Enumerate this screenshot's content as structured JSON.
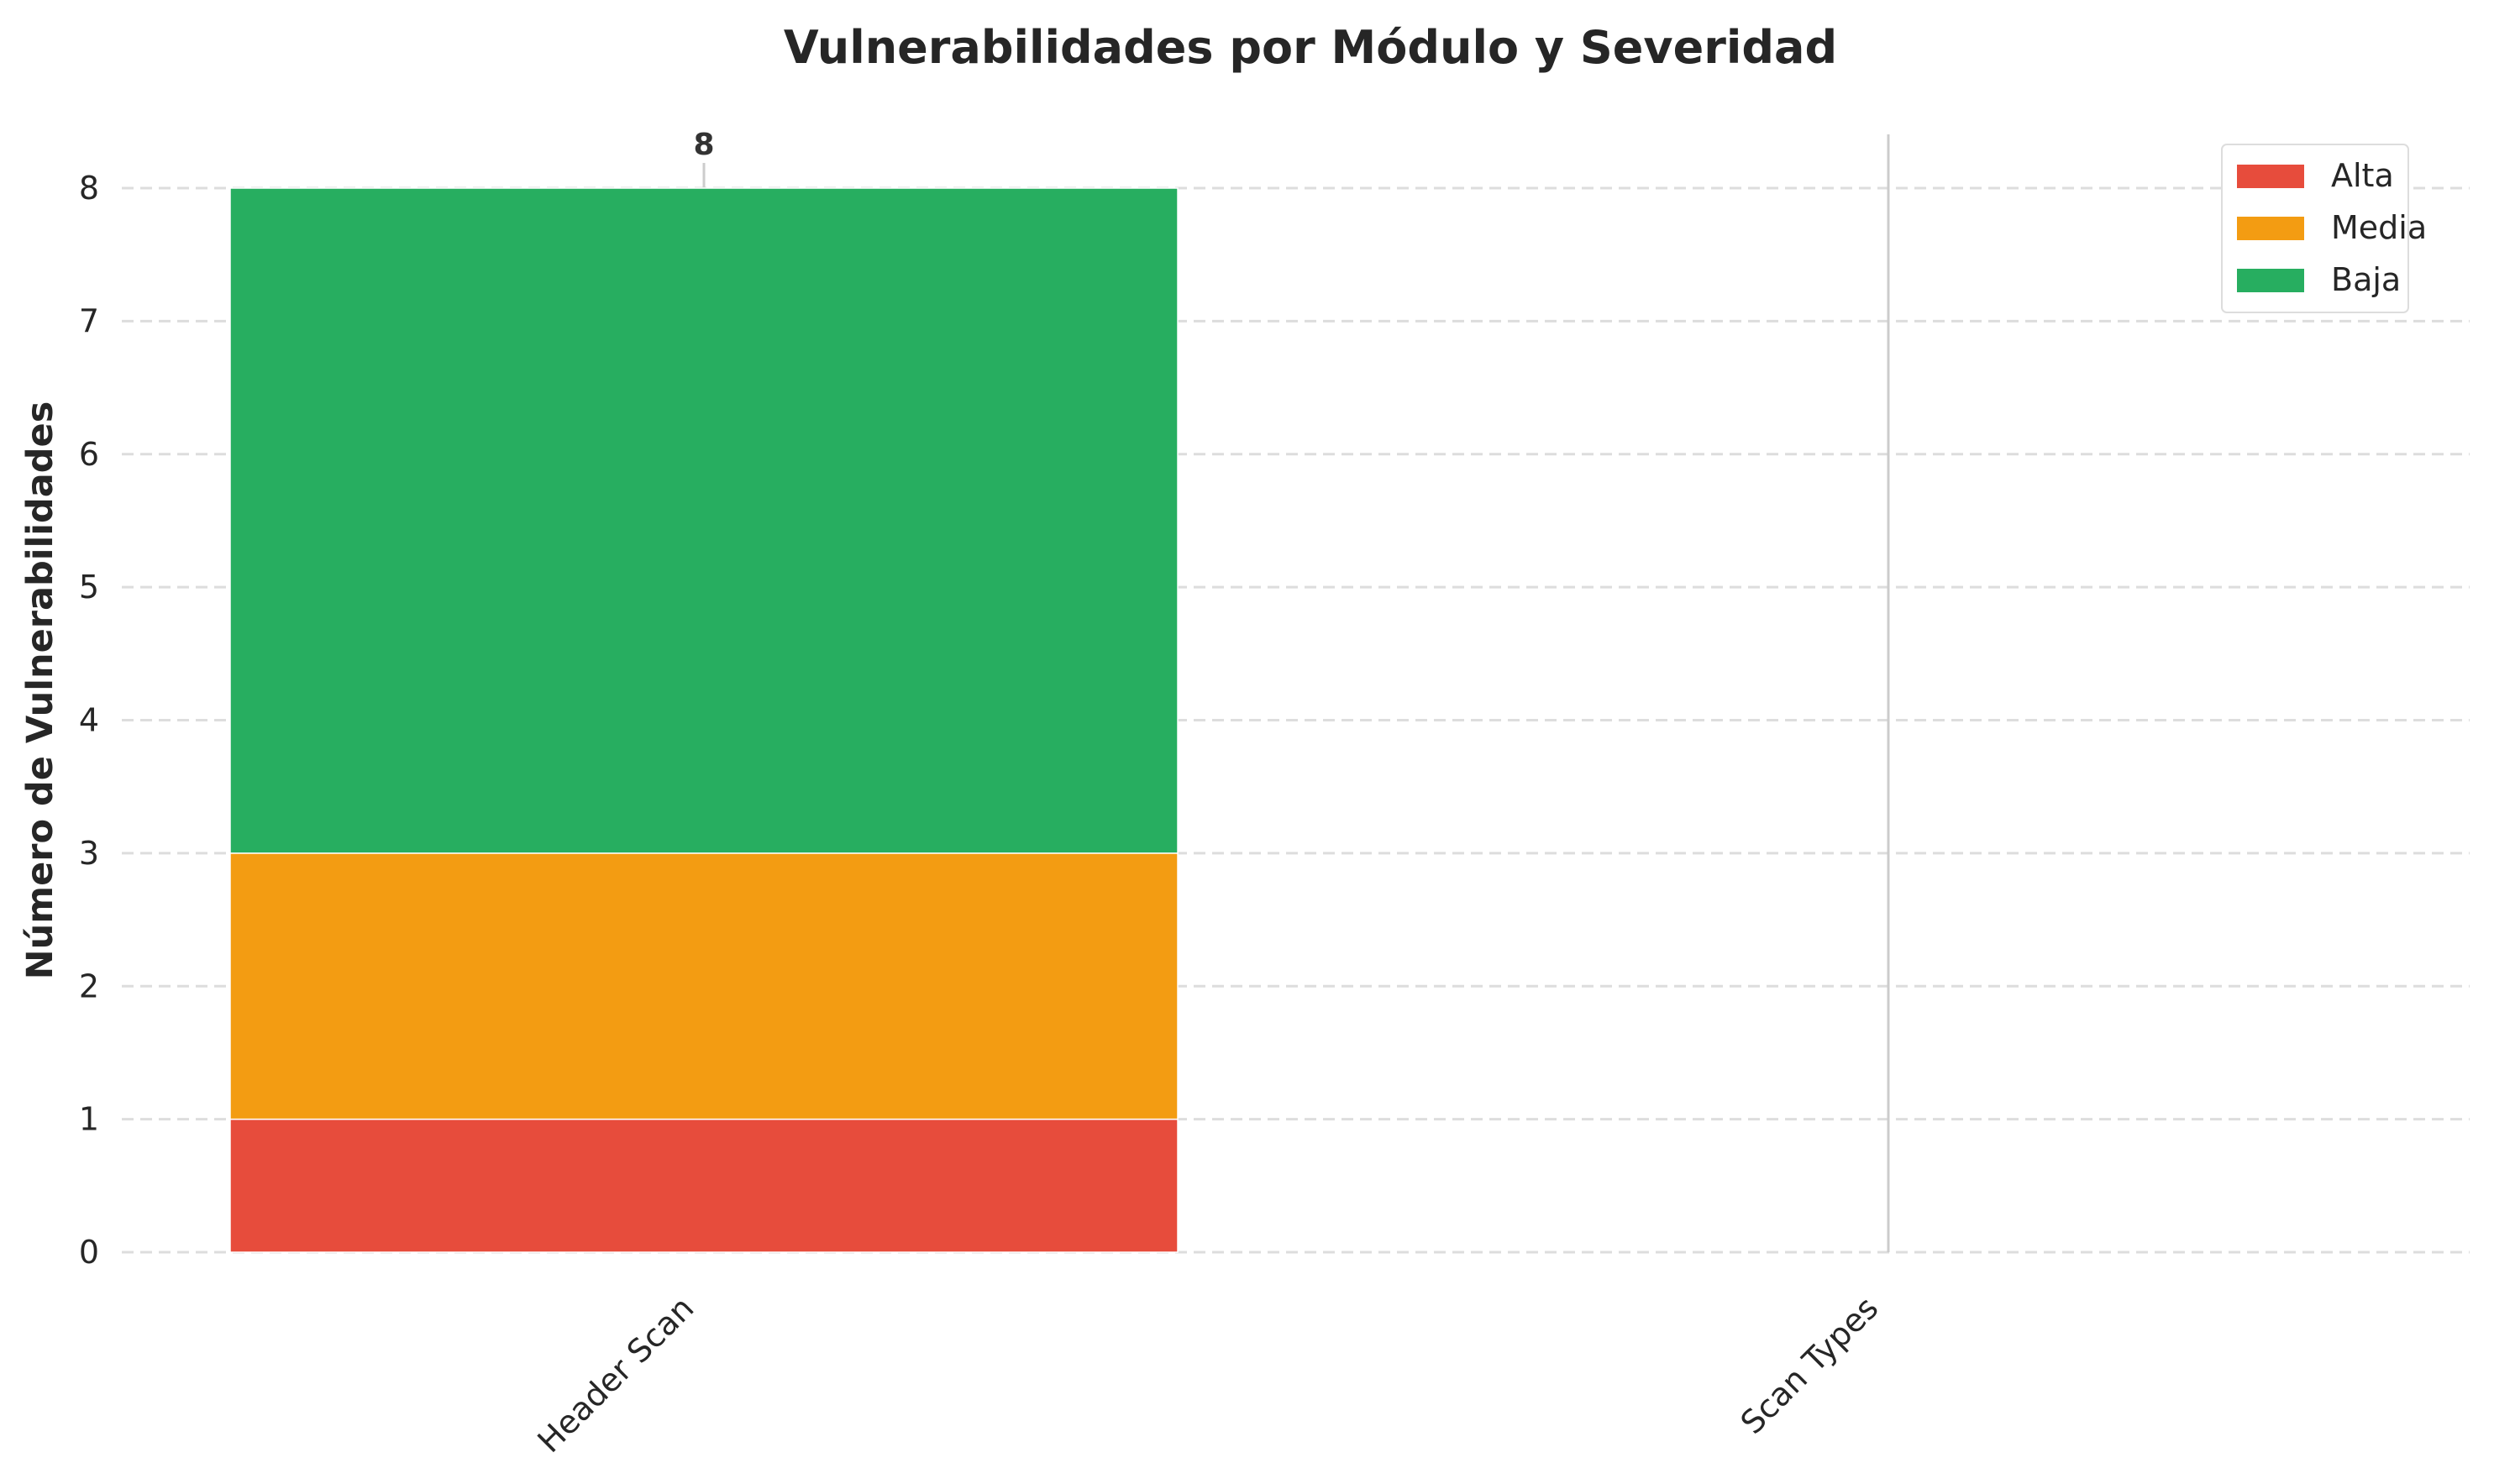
{
  "chart_data": {
    "type": "bar",
    "stacked": true,
    "title": "Vulnerabilidades por Módulo y Severidad",
    "xlabel": "",
    "ylabel": "Número de Vulnerabilidades",
    "categories": [
      "Header Scan",
      "Scan Types"
    ],
    "series": [
      {
        "name": "Alta",
        "values": [
          1,
          0
        ],
        "color": "#e74c3c"
      },
      {
        "name": "Media",
        "values": [
          2,
          0
        ],
        "color": "#f39c12"
      },
      {
        "name": "Baja",
        "values": [
          5,
          0
        ],
        "color": "#27ae60"
      }
    ],
    "totals": [
      "8",
      ""
    ],
    "yticks": [
      "0",
      "1",
      "2",
      "3",
      "4",
      "5",
      "6",
      "7",
      "8"
    ],
    "ylim": [
      0,
      8.4
    ],
    "grid": true,
    "legend_position": "top-right",
    "category_marker_color": "#cccccc",
    "grid_color": "#dddddd"
  }
}
